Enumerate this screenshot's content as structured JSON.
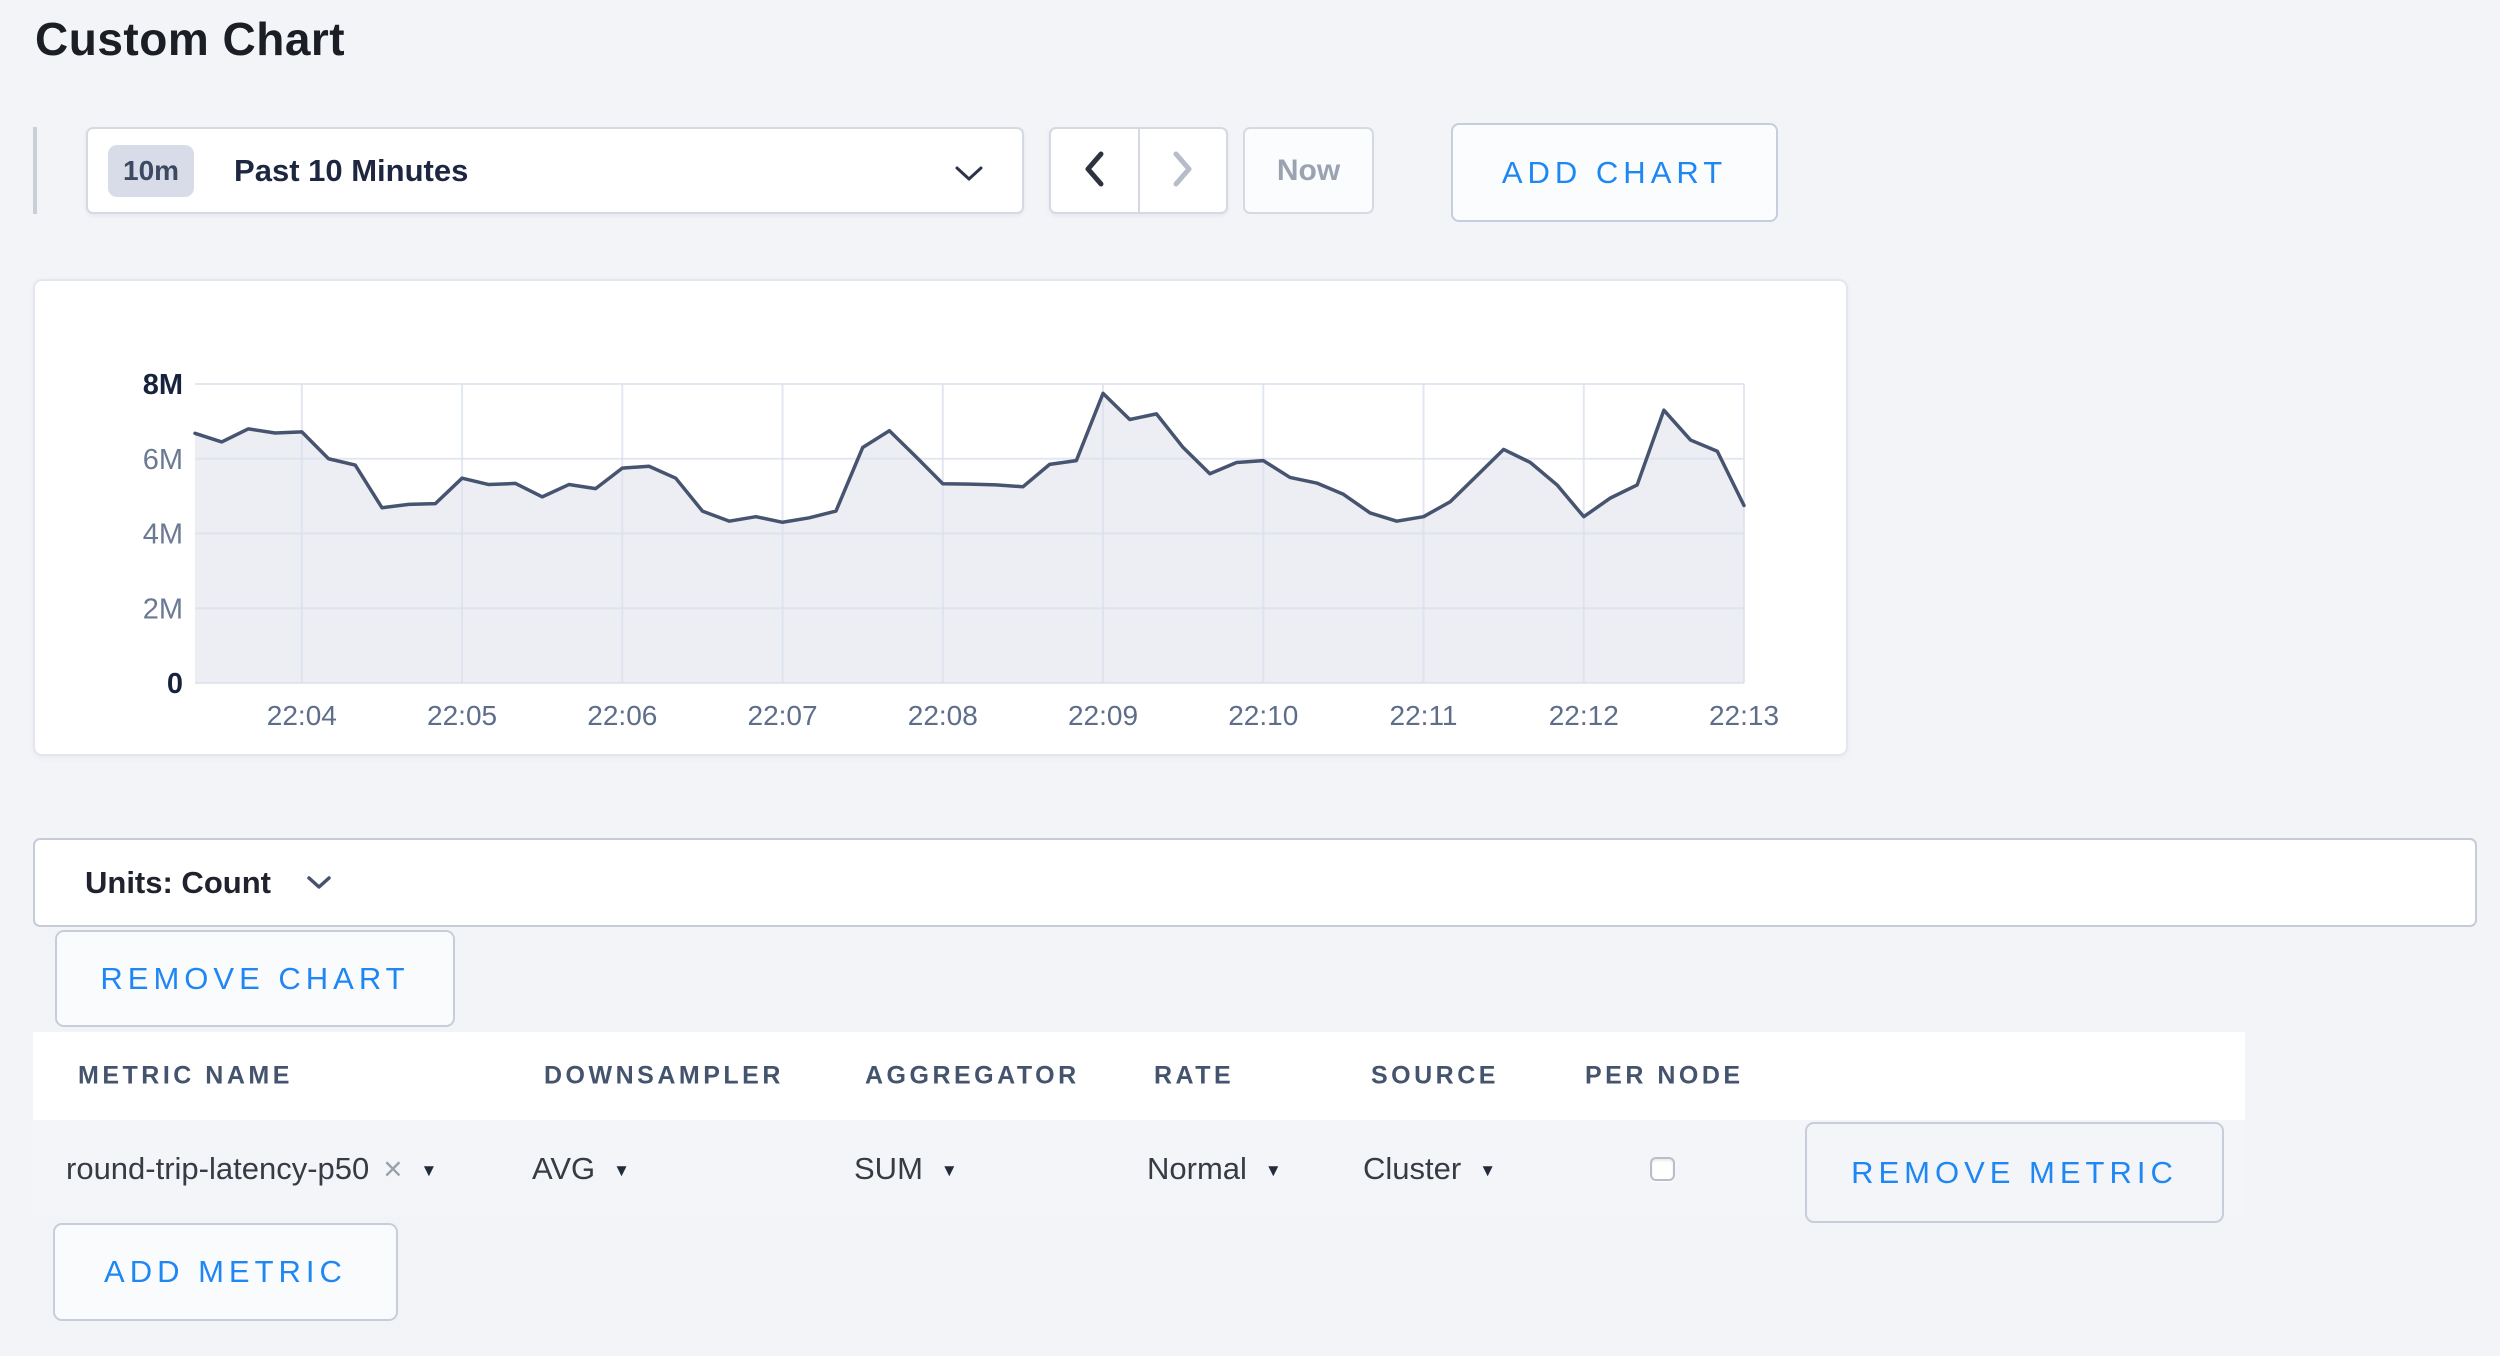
{
  "page": {
    "title": "Custom Chart",
    "background_color": "#f3f4f8",
    "accent_blue": "#1e87f3"
  },
  "toolbar": {
    "time_badge": "10m",
    "time_label": "Past 10 Minutes",
    "now_label": "Now",
    "add_chart_label": "ADD CHART",
    "back_arrow_enabled": true,
    "forward_arrow_enabled": false
  },
  "chart_card": {
    "units_label": "Units: Count",
    "remove_chart_label": "REMOVE CHART"
  },
  "chart_data": {
    "type": "area",
    "title": "",
    "unit": "Count",
    "grid": true,
    "line_color": "#47546f",
    "fill_color": "#e1e4ee",
    "x_tick_labels": [
      "22:04",
      "22:05",
      "22:06",
      "22:07",
      "22:08",
      "22:09",
      "22:10",
      "22:11",
      "22:12",
      "22:13"
    ],
    "x_interval_seconds": 10,
    "x_start": "22:03:20",
    "x_end": "22:13:00",
    "y_tick_labels": [
      "0",
      "2M",
      "4M",
      "6M",
      "8M"
    ],
    "ylim_millions": [
      0,
      8
    ],
    "series": [
      {
        "name": "round-trip-latency-p50",
        "values_millions": [
          6.68,
          6.45,
          6.8,
          6.69,
          6.72,
          6.0,
          5.83,
          4.69,
          4.78,
          4.8,
          5.48,
          5.31,
          5.34,
          4.98,
          5.31,
          5.2,
          5.75,
          5.8,
          5.48,
          4.6,
          4.33,
          4.45,
          4.3,
          4.42,
          4.6,
          6.3,
          6.75,
          6.05,
          5.33,
          5.32,
          5.3,
          5.25,
          5.85,
          5.95,
          7.75,
          7.05,
          7.2,
          6.3,
          5.6,
          5.9,
          5.95,
          5.5,
          5.35,
          5.05,
          4.55,
          4.33,
          4.45,
          4.85,
          5.55,
          6.25,
          5.9,
          5.3,
          4.45,
          4.95,
          5.3,
          7.3,
          6.5,
          6.2,
          4.75
        ]
      }
    ]
  },
  "metrics_table": {
    "headers": [
      "METRIC NAME",
      "DOWNSAMPLER",
      "AGGREGATOR",
      "RATE",
      "SOURCE",
      "PER NODE"
    ],
    "rows": [
      {
        "metric_name": "round-trip-latency-p50",
        "clear_icon": "×",
        "downsampler": "AVG",
        "aggregator": "SUM",
        "rate": "Normal",
        "source": "Cluster",
        "per_node_checked": false,
        "remove_metric_label": "REMOVE METRIC"
      }
    ],
    "add_metric_label": "ADD METRIC"
  }
}
